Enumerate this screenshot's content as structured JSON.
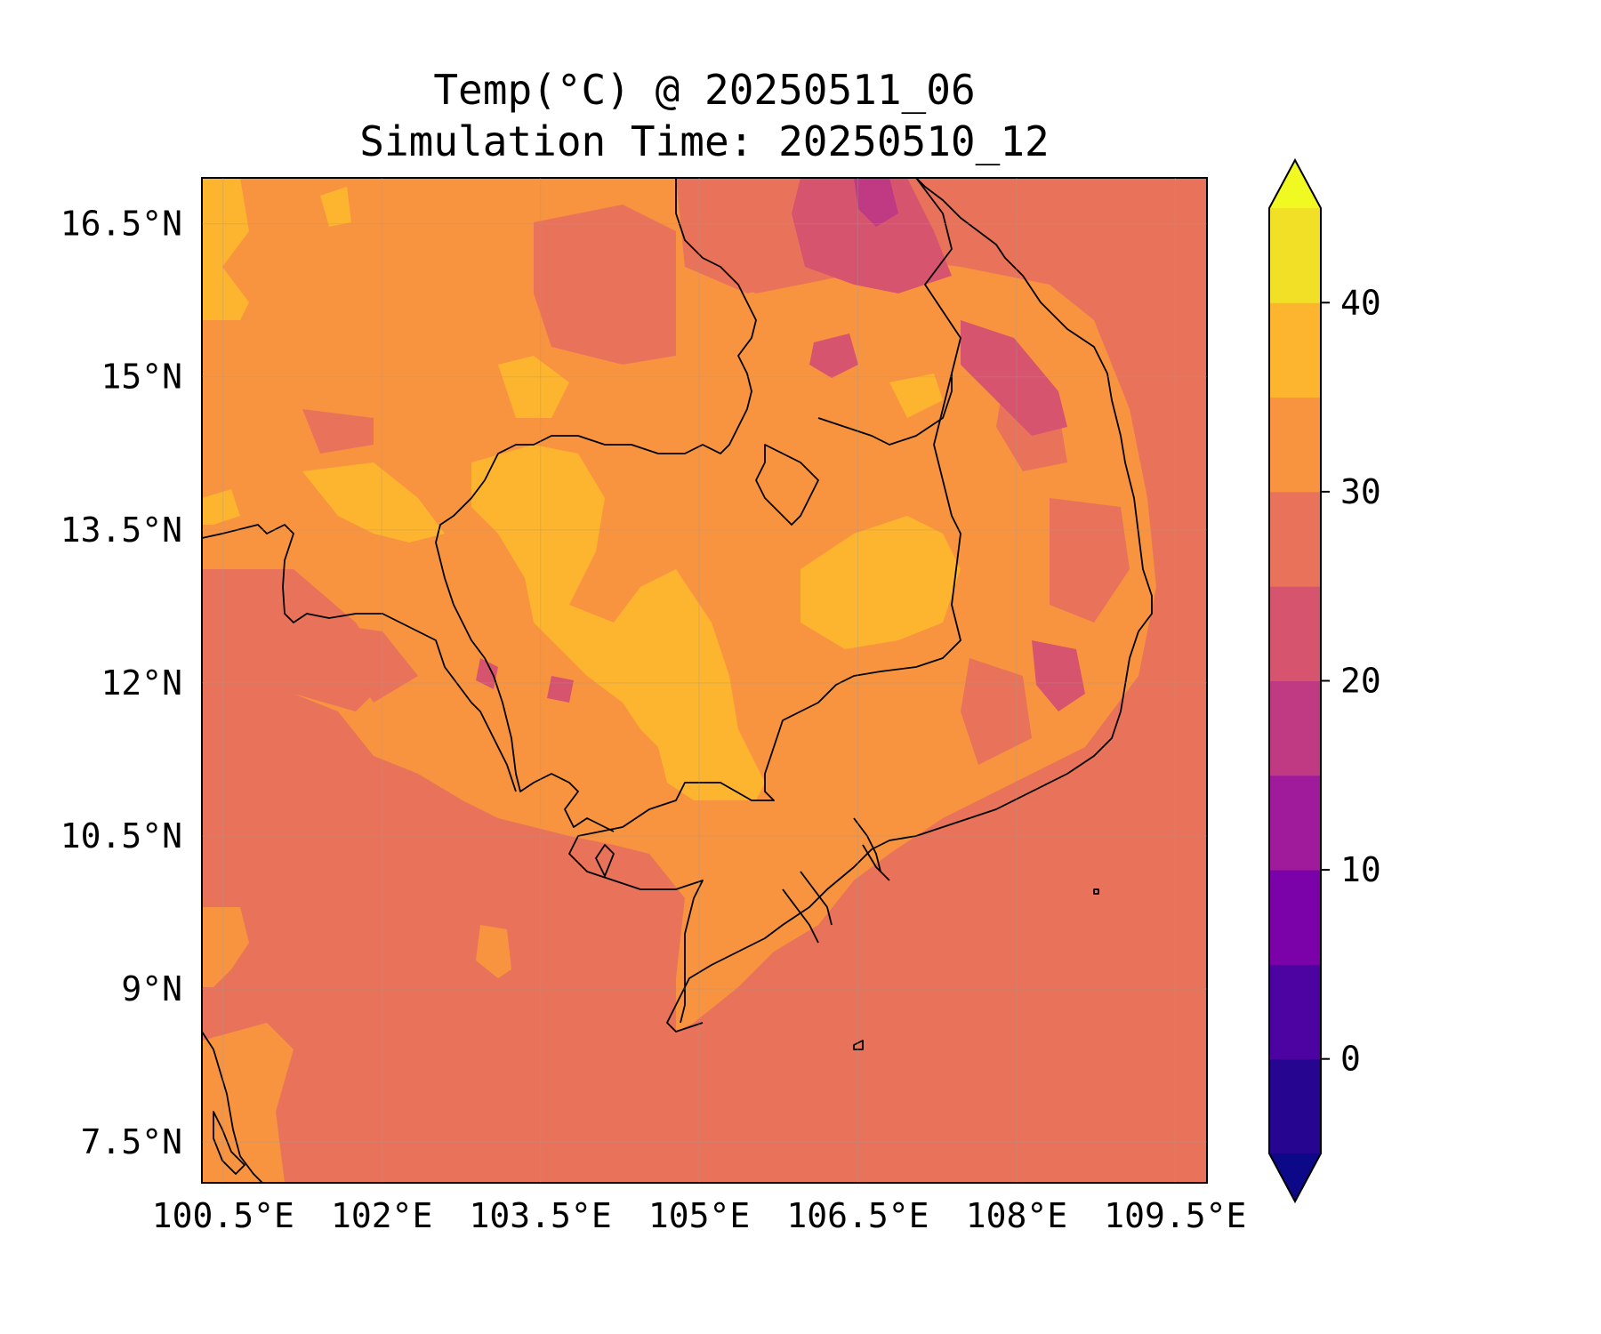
{
  "title": {
    "line1": "Temp(°C) @ 20250511_06",
    "line2": "Simulation Time: 20250510_12"
  },
  "map": {
    "extent": {
      "lon": [
        100.3,
        109.8
      ],
      "lat": [
        7.1,
        16.95
      ]
    },
    "x_ticks": [
      {
        "value": 100.5,
        "label": "100.5°E"
      },
      {
        "value": 102.0,
        "label": "102°E"
      },
      {
        "value": 103.5,
        "label": "103.5°E"
      },
      {
        "value": 105.0,
        "label": "105°E"
      },
      {
        "value": 106.5,
        "label": "106.5°E"
      },
      {
        "value": 108.0,
        "label": "108°E"
      },
      {
        "value": 109.5,
        "label": "109.5°E"
      }
    ],
    "y_ticks": [
      {
        "value": 7.5,
        "label": "7.5°N"
      },
      {
        "value": 9.0,
        "label": "9°N"
      },
      {
        "value": 10.5,
        "label": "10.5°N"
      },
      {
        "value": 12.0,
        "label": "12°N"
      },
      {
        "value": 13.5,
        "label": "13.5°N"
      },
      {
        "value": 15.0,
        "label": "15°N"
      },
      {
        "value": 16.5,
        "label": "16.5°N"
      }
    ],
    "background_color": "#e8735a"
  },
  "colorbar": {
    "levels": [
      -5,
      0,
      5,
      10,
      15,
      20,
      25,
      30,
      35,
      40,
      45
    ],
    "colors": [
      "#260591",
      "#4d02a2",
      "#7b02a8",
      "#a01a9c",
      "#c03a83",
      "#d6546e",
      "#e8735a",
      "#f89440",
      "#fdb42f",
      "#f2e026"
    ],
    "extend_under_color": "#0d0887",
    "extend_over_color": "#f0f921",
    "ticks": [
      {
        "value": 0,
        "label": "0"
      },
      {
        "value": 10,
        "label": "10"
      },
      {
        "value": 20,
        "label": "20"
      },
      {
        "value": 30,
        "label": "30"
      },
      {
        "value": 40,
        "label": "40"
      }
    ]
  }
}
